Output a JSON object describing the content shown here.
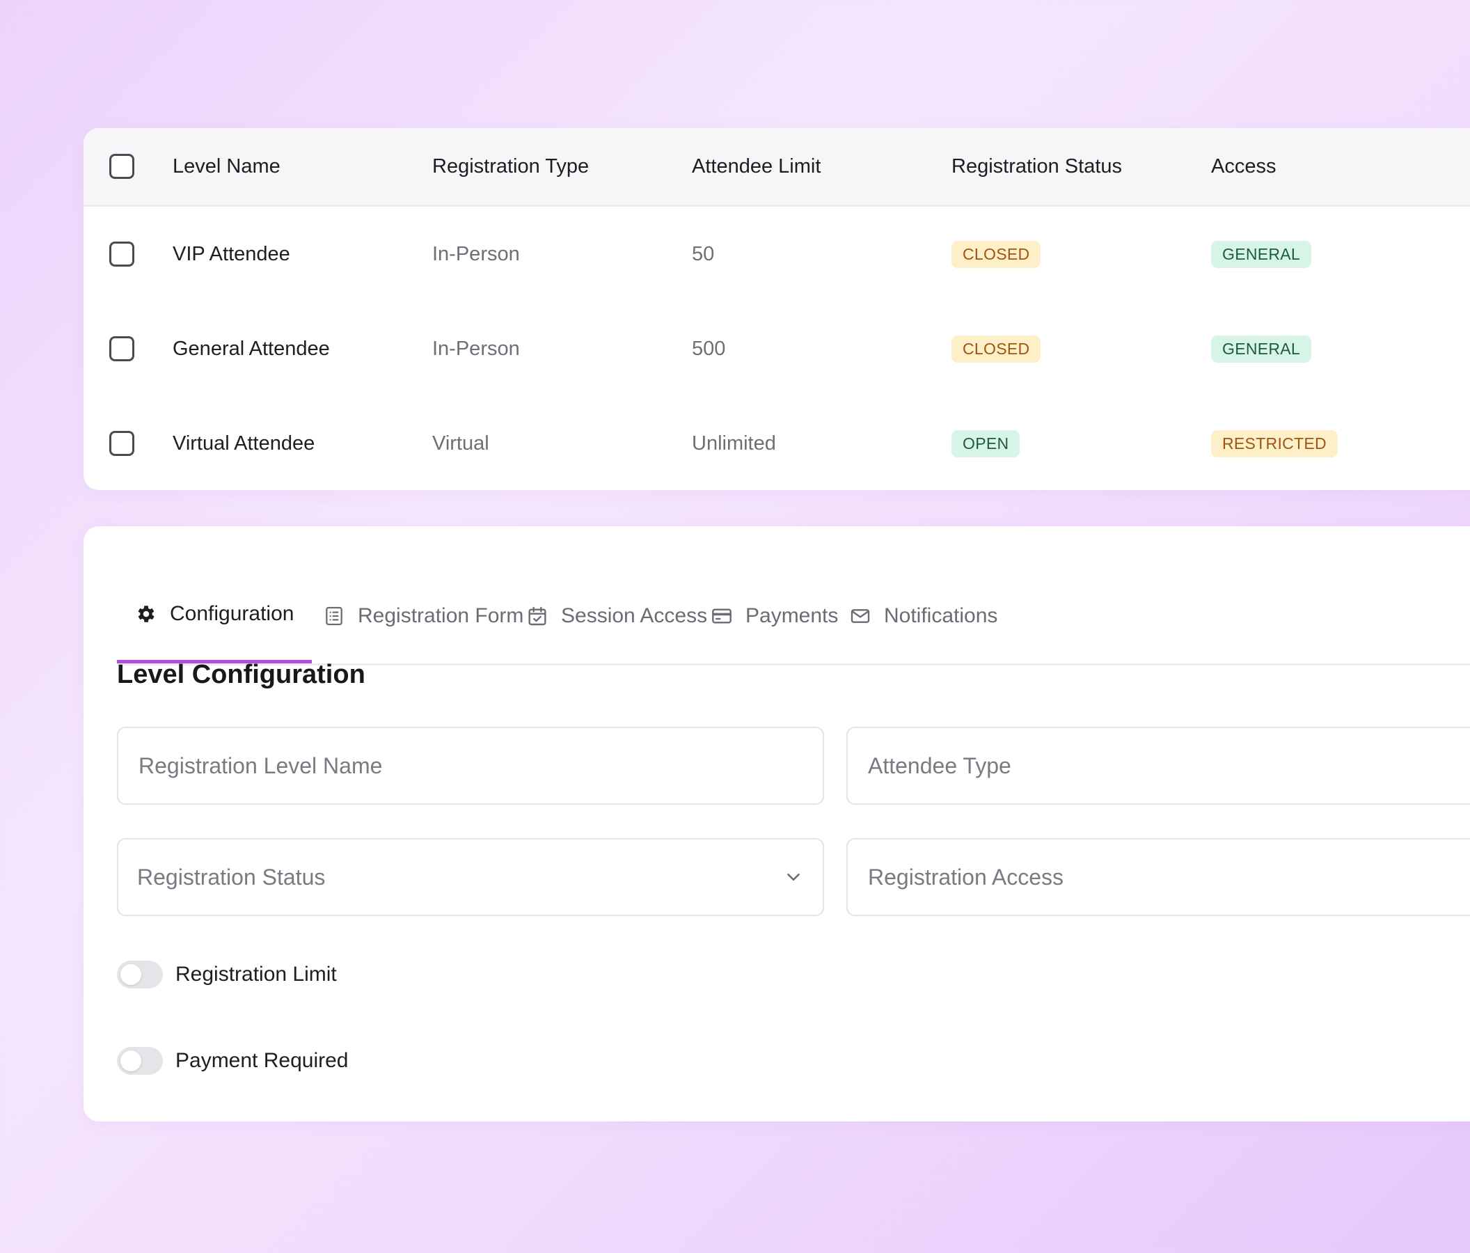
{
  "table": {
    "headers": {
      "level_name": "Level Name",
      "registration_type": "Registration Type",
      "attendee_limit": "Attendee Limit",
      "registration_status": "Registration Status",
      "access": "Access"
    },
    "rows": [
      {
        "name": "VIP Attendee",
        "type": "In-Person",
        "limit": "50",
        "status": "CLOSED",
        "access": "GENERAL"
      },
      {
        "name": "General Attendee",
        "type": "In-Person",
        "limit": "500",
        "status": "CLOSED",
        "access": "GENERAL"
      },
      {
        "name": "Virtual Attendee",
        "type": "Virtual",
        "limit": "Unlimited",
        "status": "OPEN",
        "access": "RESTRICTED"
      }
    ]
  },
  "tabs": [
    {
      "label": "Configuration",
      "icon": "gear-icon",
      "active": true
    },
    {
      "label": "Registration Form",
      "icon": "form-icon",
      "active": false
    },
    {
      "label": "Session Access",
      "icon": "calendar-check-icon",
      "active": false
    },
    {
      "label": "Payments",
      "icon": "credit-card-icon",
      "active": false
    },
    {
      "label": "Notifications",
      "icon": "mail-icon",
      "active": false
    }
  ],
  "config": {
    "title": "Level Configuration",
    "fields": {
      "level_name_placeholder": "Registration Level Name",
      "attendee_type_placeholder": "Attendee Type",
      "status_placeholder": "Registration Status",
      "access_placeholder": "Registration Access"
    },
    "toggles": [
      {
        "label": "Registration Limit",
        "on": false
      },
      {
        "label": "Payment Required",
        "on": false
      }
    ]
  },
  "colors": {
    "accent": "#b04fdb",
    "badge_warning_bg": "#fdf0c8",
    "badge_warning_text": "#a05410",
    "badge_success_bg": "#d7f5e6",
    "badge_success_text": "#1d5b3c"
  }
}
